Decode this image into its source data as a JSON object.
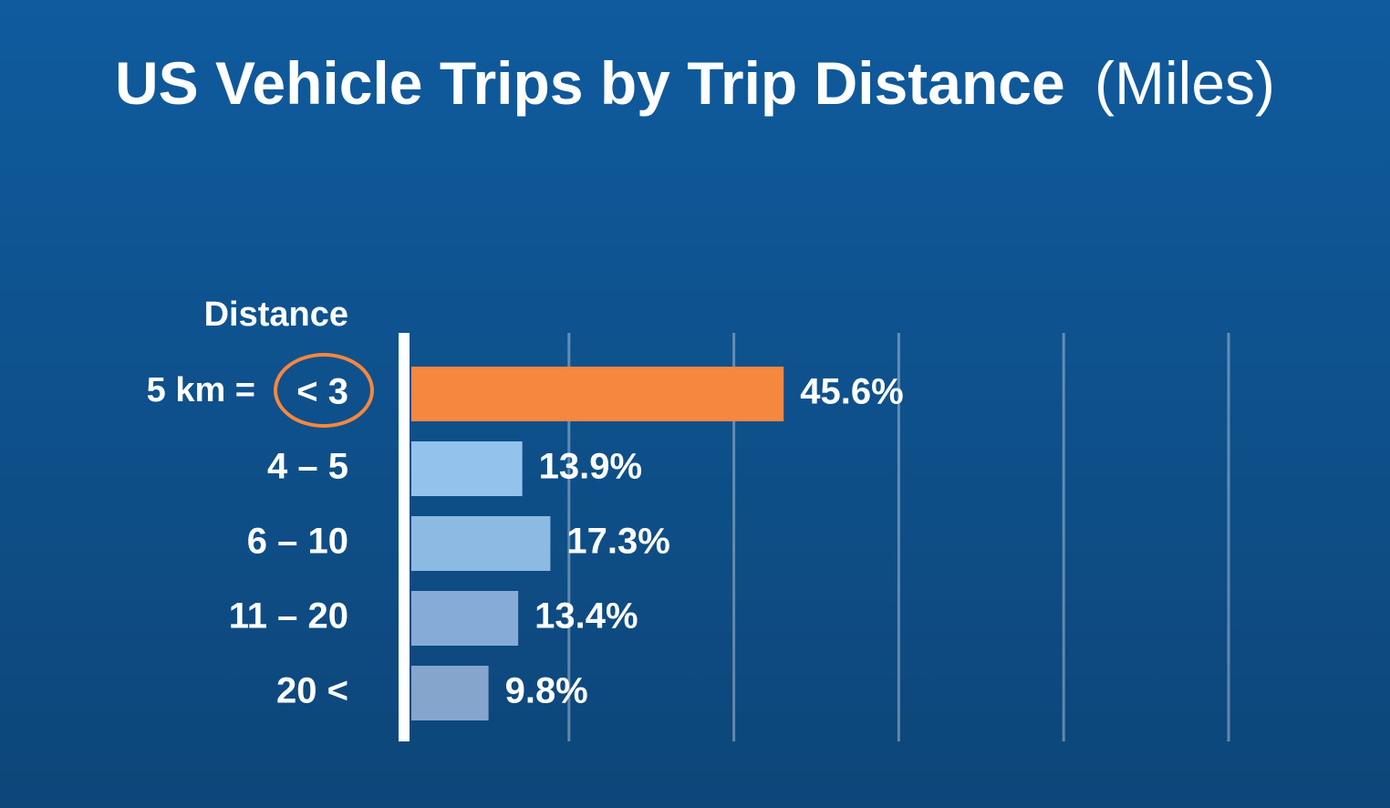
{
  "chart_data": {
    "type": "barh",
    "title": "US Vehicle Trips by Trip Distance",
    "title_unit": "(Miles)",
    "y_label": "Distance",
    "annotation": "5 km =",
    "categories": [
      "< 3",
      "4 – 5",
      "6 – 10",
      "11 – 20",
      "20 <"
    ],
    "values": [
      45.6,
      13.9,
      17.3,
      13.4,
      9.8
    ],
    "value_labels": [
      "45.6%",
      "13.9%",
      "17.3%",
      "13.4%",
      "9.8%"
    ],
    "colors": [
      "#f5873e",
      "#93c2ec",
      "#8dbae3",
      "#86abd6",
      "#86a5cc"
    ],
    "xlim": [
      0,
      100
    ],
    "xticks": [
      0,
      20,
      40,
      60,
      80,
      100
    ],
    "grid": true
  }
}
